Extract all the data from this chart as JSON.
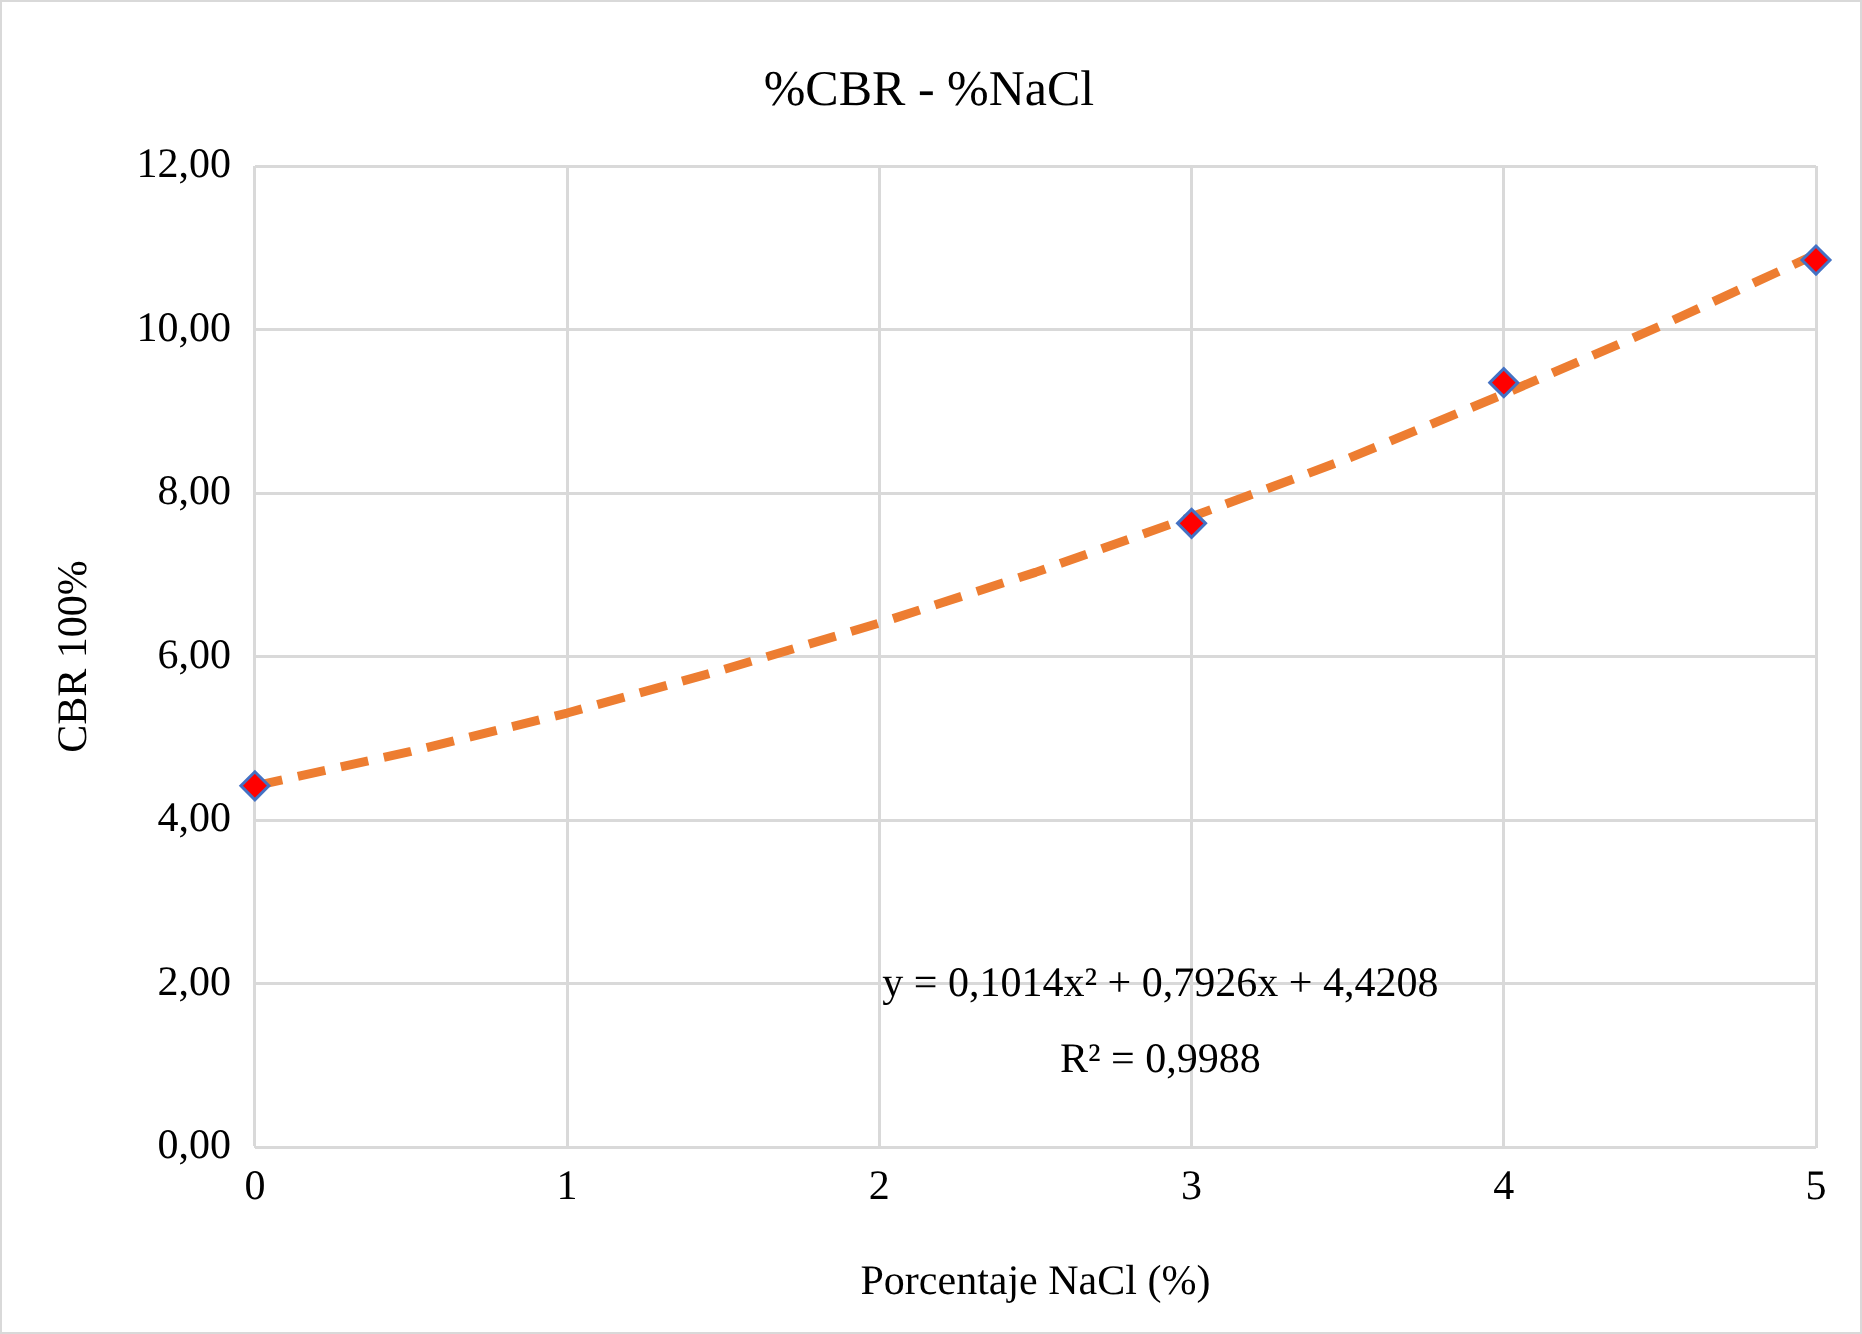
{
  "chart_data": {
    "type": "scatter",
    "title": "%CBR - %NaCl",
    "xlabel": "Porcentaje NaCl (%)",
    "ylabel": "CBR 100%",
    "series": [
      {
        "type": "scatter",
        "color": "#ff0000",
        "marker": "diamond",
        "x": [
          0,
          3,
          4,
          5
        ],
        "values": [
          4.42,
          7.63,
          9.35,
          10.85
        ]
      },
      {
        "type": "line",
        "color": "#ed7d31",
        "marker": "none",
        "line_style": "dashed",
        "x": [
          0,
          0.5,
          1,
          1.5,
          2,
          2.5,
          3,
          3.5,
          4,
          4.5,
          5
        ],
        "values": [
          4.42,
          4.84,
          5.31,
          5.84,
          6.41,
          7.03,
          7.71,
          8.42,
          9.21,
          10.04,
          10.92
        ]
      }
    ],
    "xlim": [
      0,
      5
    ],
    "xticks": [
      0,
      1,
      2,
      3,
      4,
      5
    ],
    "ylim": [
      0,
      12
    ],
    "yticks": [
      {
        "value": 0,
        "label": "0,00"
      },
      {
        "value": 2,
        "label": "2,00"
      },
      {
        "value": 4,
        "label": "4,00"
      },
      {
        "value": 6,
        "label": "6,00"
      },
      {
        "value": 8,
        "label": "8,00"
      },
      {
        "value": 10,
        "label": "10,00"
      },
      {
        "value": 12,
        "label": "12,00"
      }
    ],
    "grid": true,
    "legend": false,
    "annotations": [
      "y = 0,1014x² + 0,7926x + 4,4208",
      "R² = 0,9988"
    ]
  }
}
